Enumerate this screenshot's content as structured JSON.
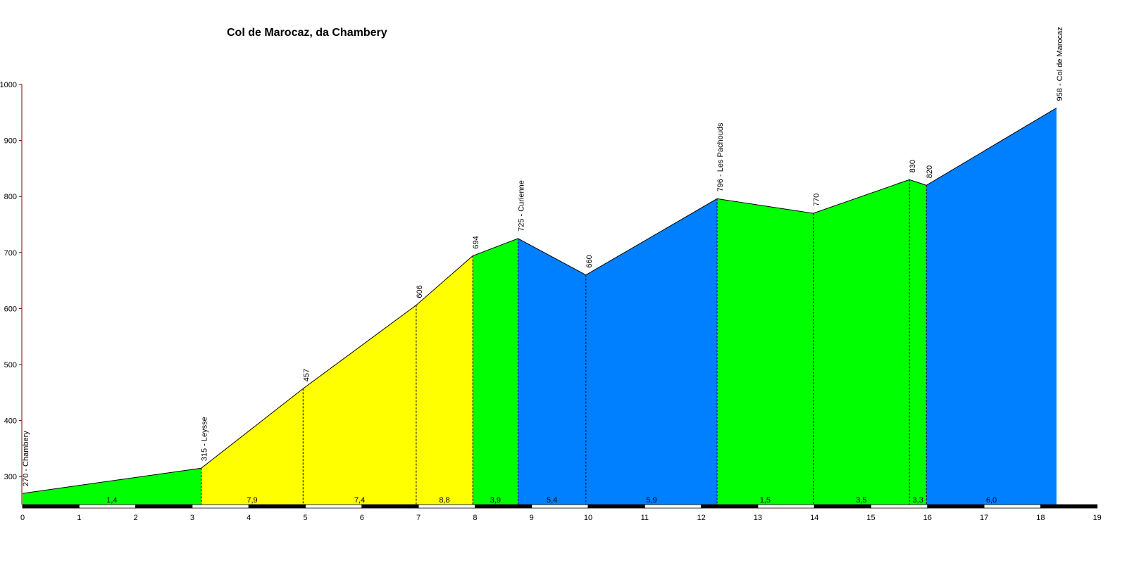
{
  "chart_data": {
    "type": "area",
    "title": "Col de Marocaz, da Chambery",
    "xlabel": "",
    "ylabel": "",
    "xlim": [
      0,
      19
    ],
    "ylim": [
      250,
      1000
    ],
    "x_ticks": [
      0,
      1,
      2,
      3,
      4,
      5,
      6,
      7,
      8,
      9,
      10,
      11,
      12,
      13,
      14,
      15,
      16,
      17,
      18,
      19
    ],
    "y_ticks": [
      300,
      400,
      500,
      600,
      700,
      800,
      900,
      1000
    ],
    "grid": false,
    "points": [
      {
        "x": 0.0,
        "y": 270,
        "label": "270 - Chambery"
      },
      {
        "x": 3.16,
        "y": 315,
        "label": "315 - Leysse"
      },
      {
        "x": 4.96,
        "y": 457,
        "label": "457"
      },
      {
        "x": 6.96,
        "y": 606,
        "label": "606"
      },
      {
        "x": 7.96,
        "y": 694,
        "label": "694"
      },
      {
        "x": 8.76,
        "y": 725,
        "label": "725 - Curienne"
      },
      {
        "x": 9.96,
        "y": 660,
        "label": "660"
      },
      {
        "x": 12.28,
        "y": 796,
        "label": "796 - Les Pachouds"
      },
      {
        "x": 13.98,
        "y": 770,
        "label": "770"
      },
      {
        "x": 15.68,
        "y": 830,
        "label": "830"
      },
      {
        "x": 15.98,
        "y": 820,
        "label": "820"
      },
      {
        "x": 18.28,
        "y": 958,
        "label": "958 - Col de Marocaz"
      }
    ],
    "segments": [
      {
        "from": 0.0,
        "to": 3.16,
        "gradient": "1,4",
        "color": "#00ff00"
      },
      {
        "from": 3.16,
        "to": 4.96,
        "gradient": "7,9",
        "color": "#ffff00"
      },
      {
        "from": 4.96,
        "to": 6.96,
        "gradient": "7,4",
        "color": "#ffff00"
      },
      {
        "from": 6.96,
        "to": 7.96,
        "gradient": "8,8",
        "color": "#ffff00"
      },
      {
        "from": 7.96,
        "to": 8.76,
        "gradient": "3,9",
        "color": "#00ff00"
      },
      {
        "from": 8.76,
        "to": 9.96,
        "gradient": "5,4",
        "color": "#0080ff"
      },
      {
        "from": 9.96,
        "to": 12.28,
        "gradient": "5,9",
        "color": "#0080ff"
      },
      {
        "from": 12.28,
        "to": 13.98,
        "gradient": "1,5",
        "color": "#00ff00"
      },
      {
        "from": 13.98,
        "to": 15.68,
        "gradient": "3,5",
        "color": "#00ff00"
      },
      {
        "from": 15.68,
        "to": 15.98,
        "gradient": "3,3",
        "color": "#00ff00"
      },
      {
        "from": 15.98,
        "to": 18.28,
        "gradient": "6,0",
        "color": "#0080ff"
      }
    ]
  }
}
